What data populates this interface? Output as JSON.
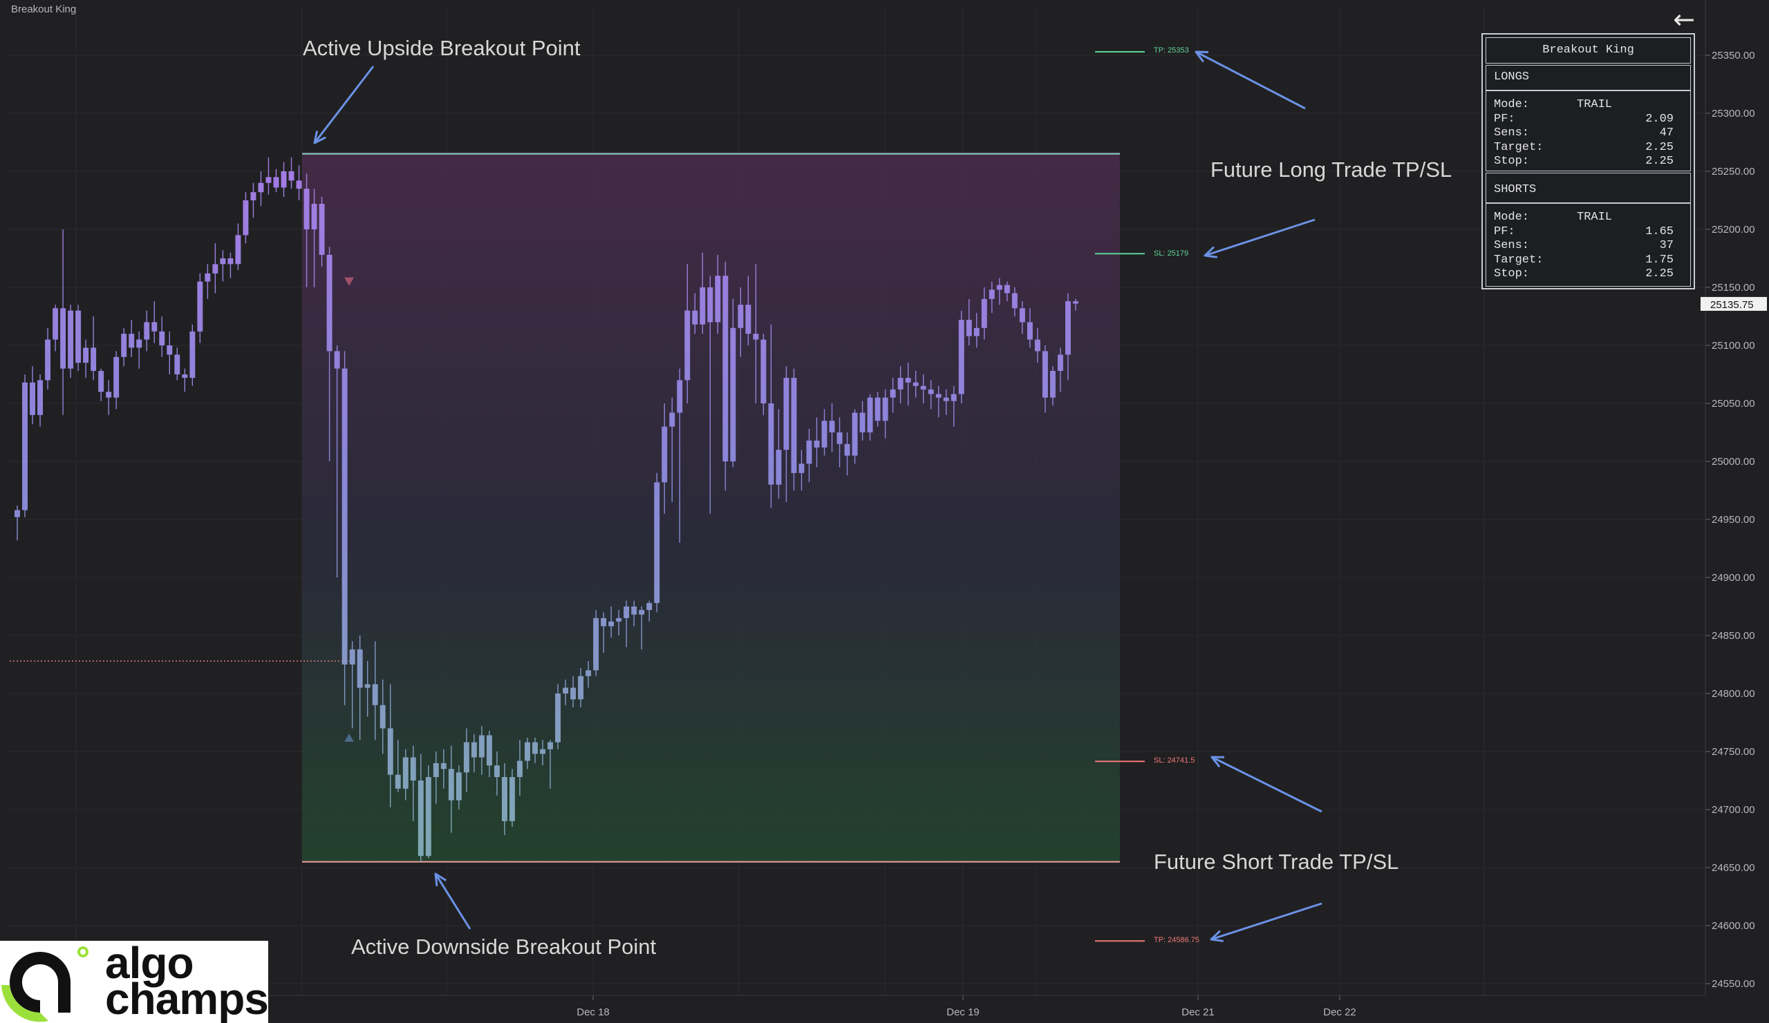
{
  "app": {
    "title": "Breakout King"
  },
  "annotations": {
    "upside": "Active Upside Breakout Point",
    "downside": "Active Downside Breakout Point",
    "long_tpsl": "Future Long Trade TP/SL",
    "short_tpsl": "Future Short Trade TP/SL"
  },
  "levels": {
    "long_tp": "TP: 25353",
    "long_sl": "SL: 25179",
    "short_sl": "SL: 24741.5",
    "short_tp": "TP: 24586.75"
  },
  "panel": {
    "title": "Breakout King",
    "longs": {
      "header": "LONGS",
      "rows": [
        {
          "k": "Mode:",
          "v": "TRAIL"
        },
        {
          "k": "PF:",
          "v": "2.09"
        },
        {
          "k": "Sens:",
          "v": "47"
        },
        {
          "k": "Target:",
          "v": "2.25"
        },
        {
          "k": "Stop:",
          "v": "2.25"
        }
      ]
    },
    "shorts": {
      "header": "SHORTS",
      "rows": [
        {
          "k": "Mode:",
          "v": "TRAIL"
        },
        {
          "k": "PF:",
          "v": "1.65"
        },
        {
          "k": "Sens:",
          "v": "37"
        },
        {
          "k": "Target:",
          "v": "1.75"
        },
        {
          "k": "Stop:",
          "v": "2.25"
        }
      ]
    }
  },
  "logo": {
    "line1": "algo",
    "line2": "champs"
  },
  "icons": {
    "back": "arrow-left-icon",
    "logo": "algochamps-logo-icon"
  },
  "colors": {
    "background": "#202022",
    "grid": "#2b2b2e",
    "candle_top": "#a27ae0",
    "candle_bottom": "#7fa6b6",
    "upper_line": "#7fd6b4",
    "lower_line": "#f0a0a0",
    "long_level": "#5fd49a",
    "short_level": "#f07878",
    "annotation_arrow": "#6b92e6",
    "price_label_bg": "#f0f0f0"
  },
  "chart_data": {
    "type": "candlestick",
    "title": "Breakout King",
    "y_ticks": [
      "25350.00",
      "25300.00",
      "25250.00",
      "25200.00",
      "25150.00",
      "25100.00",
      "25050.00",
      "25000.00",
      "24950.00",
      "24900.00",
      "24850.00",
      "24800.00",
      "24750.00",
      "24700.00",
      "24650.00",
      "24600.00",
      "24550.00"
    ],
    "y_range": [
      24540,
      25385
    ],
    "x_ticks": [
      "Dec 18",
      "Dec 19",
      "Dec 21",
      "Dec 22"
    ],
    "last_price": "25135.75",
    "breakout_upper": 25265,
    "breakout_lower": 24655,
    "prior_level": 24828,
    "long_tp": 25353,
    "long_sl": 25179,
    "short_sl": 24741.5,
    "short_tp": 24586.75,
    "signals": [
      {
        "type": "sell",
        "price": 25155
      },
      {
        "type": "buy",
        "price": 24762
      }
    ],
    "candles": [
      [
        24958,
        24962,
        24932,
        24952
      ],
      [
        24958,
        25075,
        24952,
        25068
      ],
      [
        25068,
        25082,
        25032,
        25040
      ],
      [
        25040,
        25075,
        25030,
        25070
      ],
      [
        25070,
        25115,
        25062,
        25105
      ],
      [
        25105,
        25135,
        25095,
        25132
      ],
      [
        25132,
        25200,
        25040,
        25080
      ],
      [
        25080,
        25135,
        25072,
        25130
      ],
      [
        25130,
        25135,
        25078,
        25085
      ],
      [
        25085,
        25105,
        25072,
        25098
      ],
      [
        25098,
        25125,
        25070,
        25078
      ],
      [
        25078,
        25080,
        25052,
        25060
      ],
      [
        25060,
        25070,
        25040,
        25055
      ],
      [
        25055,
        25095,
        25045,
        25090
      ],
      [
        25090,
        25115,
        25082,
        25110
      ],
      [
        25110,
        25122,
        25090,
        25098
      ],
      [
        25098,
        25112,
        25080,
        25105
      ],
      [
        25105,
        25130,
        25095,
        25120
      ],
      [
        25120,
        25138,
        25102,
        25112
      ],
      [
        25112,
        25125,
        25090,
        25100
      ],
      [
        25100,
        25112,
        25075,
        25092
      ],
      [
        25092,
        25098,
        25070,
        25075
      ],
      [
        25075,
        25080,
        25060,
        25072
      ],
      [
        25072,
        25118,
        25065,
        25112
      ],
      [
        25112,
        25162,
        25102,
        25155
      ],
      [
        25155,
        25170,
        25140,
        25162
      ],
      [
        25162,
        25188,
        25145,
        25170
      ],
      [
        25170,
        25182,
        25155,
        25175
      ],
      [
        25175,
        25180,
        25158,
        25170
      ],
      [
        25170,
        25205,
        25165,
        25195
      ],
      [
        25195,
        25232,
        25188,
        25225
      ],
      [
        25225,
        25240,
        25210,
        25232
      ],
      [
        25232,
        25250,
        25220,
        25240
      ],
      [
        25240,
        25262,
        25230,
        25245
      ],
      [
        25245,
        25252,
        25232,
        25236
      ],
      [
        25236,
        25258,
        25228,
        25250
      ],
      [
        25250,
        25262,
        25235,
        25242
      ],
      [
        25242,
        25255,
        25225,
        25235
      ],
      [
        25235,
        25248,
        25150,
        25200
      ],
      [
        25200,
        25235,
        25150,
        25222
      ],
      [
        25222,
        25228,
        25168,
        25178
      ],
      [
        25178,
        25185,
        25000,
        25095
      ],
      [
        25095,
        25100,
        24900,
        25080
      ],
      [
        25080,
        25095,
        24790,
        24825
      ],
      [
        24825,
        24845,
        24770,
        24838
      ],
      [
        24838,
        24850,
        24760,
        24805
      ],
      [
        24805,
        24828,
        24780,
        24808
      ],
      [
        24808,
        24845,
        24760,
        24790
      ],
      [
        24790,
        24812,
        24748,
        24770
      ],
      [
        24770,
        24808,
        24702,
        24730
      ],
      [
        24730,
        24760,
        24715,
        24718
      ],
      [
        24718,
        24752,
        24708,
        24745
      ],
      [
        24745,
        24755,
        24690,
        24725
      ],
      [
        24725,
        24748,
        24655,
        24660
      ],
      [
        24660,
        24738,
        24658,
        24728
      ],
      [
        24728,
        24750,
        24705,
        24740
      ],
      [
        24740,
        24752,
        24718,
        24735
      ],
      [
        24735,
        24755,
        24680,
        24708
      ],
      [
        24708,
        24738,
        24700,
        24732
      ],
      [
        24732,
        24770,
        24715,
        24758
      ],
      [
        24758,
        24765,
        24732,
        24745
      ],
      [
        24745,
        24772,
        24730,
        24764
      ],
      [
        24764,
        24768,
        24728,
        24738
      ],
      [
        24738,
        24750,
        24712,
        24728
      ],
      [
        24728,
        24740,
        24678,
        24690
      ],
      [
        24690,
        24735,
        24685,
        24728
      ],
      [
        24728,
        24760,
        24712,
        24742
      ],
      [
        24742,
        24762,
        24735,
        24758
      ],
      [
        24758,
        24762,
        24740,
        24748
      ],
      [
        24748,
        24760,
        24738,
        24752
      ],
      [
        24752,
        24760,
        24718,
        24758
      ],
      [
        24758,
        24808,
        24752,
        24800
      ],
      [
        24800,
        24812,
        24790,
        24805
      ],
      [
        24805,
        24815,
        24788,
        24795
      ],
      [
        24795,
        24822,
        24788,
        24815
      ],
      [
        24815,
        24828,
        24805,
        24820
      ],
      [
        24820,
        24872,
        24815,
        24865
      ],
      [
        24865,
        24870,
        24835,
        24858
      ],
      [
        24858,
        24875,
        24848,
        24862
      ],
      [
        24862,
        24872,
        24850,
        24865
      ],
      [
        24865,
        24880,
        24840,
        24875
      ],
      [
        24875,
        24880,
        24858,
        24868
      ],
      [
        24868,
        24875,
        24838,
        24872
      ],
      [
        24872,
        24880,
        24862,
        24878
      ],
      [
        24878,
        24990,
        24870,
        24982
      ],
      [
        24982,
        25050,
        24955,
        25030
      ],
      [
        25030,
        25055,
        24965,
        25042
      ],
      [
        25042,
        25080,
        24930,
        25070
      ],
      [
        25070,
        25170,
        25050,
        25130
      ],
      [
        25130,
        25145,
        25110,
        25118
      ],
      [
        25118,
        25180,
        25110,
        25150
      ],
      [
        25150,
        25160,
        24955,
        25120
      ],
      [
        25120,
        25178,
        25110,
        25160
      ],
      [
        25160,
        25172,
        24975,
        25000
      ],
      [
        25000,
        25140,
        24995,
        25115
      ],
      [
        25115,
        25150,
        25090,
        25135
      ],
      [
        25135,
        25160,
        25100,
        25110
      ],
      [
        25110,
        25170,
        25050,
        25105
      ],
      [
        25105,
        25110,
        25040,
        25050
      ],
      [
        25050,
        25118,
        24960,
        24980
      ],
      [
        24980,
        25045,
        24968,
        25010
      ],
      [
        25010,
        25082,
        24965,
        25072
      ],
      [
        25072,
        25080,
        24975,
        24990
      ],
      [
        24990,
        25010,
        24975,
        24998
      ],
      [
        24998,
        25028,
        24982,
        25018
      ],
      [
        25018,
        25038,
        24995,
        25012
      ],
      [
        25012,
        25045,
        25005,
        25035
      ],
      [
        25035,
        25050,
        25008,
        25025
      ],
      [
        25025,
        25038,
        24995,
        25015
      ],
      [
        25015,
        25025,
        24988,
        25005
      ],
      [
        25005,
        25045,
        24998,
        25042
      ],
      [
        25042,
        25052,
        25018,
        25025
      ],
      [
        25025,
        25058,
        25018,
        25055
      ],
      [
        25055,
        25060,
        25030,
        25035
      ],
      [
        25035,
        25062,
        25020,
        25055
      ],
      [
        25055,
        25072,
        25042,
        25062
      ],
      [
        25062,
        25082,
        25050,
        25072
      ],
      [
        25072,
        25085,
        25048,
        25068
      ],
      [
        25068,
        25078,
        25055,
        25065
      ],
      [
        25065,
        25075,
        25050,
        25062
      ],
      [
        25062,
        25070,
        25045,
        25058
      ],
      [
        25058,
        25065,
        25038,
        25055
      ],
      [
        25055,
        25062,
        25040,
        25052
      ],
      [
        25052,
        25065,
        25030,
        25058
      ],
      [
        25058,
        25130,
        25050,
        25122
      ],
      [
        25122,
        25140,
        25100,
        25108
      ],
      [
        25108,
        25128,
        25098,
        25115
      ],
      [
        25115,
        25150,
        25105,
        25140
      ],
      [
        25140,
        25155,
        25128,
        25148
      ],
      [
        25148,
        25158,
        25135,
        25152
      ],
      [
        25152,
        25155,
        25138,
        25145
      ],
      [
        25145,
        25150,
        25125,
        25132
      ],
      [
        25132,
        25138,
        25110,
        25120
      ],
      [
        25120,
        25132,
        25098,
        25105
      ],
      [
        25105,
        25115,
        25085,
        25095
      ],
      [
        25095,
        25100,
        25042,
        25055
      ],
      [
        25055,
        25082,
        25048,
        25078
      ],
      [
        25078,
        25098,
        25060,
        25092
      ],
      [
        25092,
        25145,
        25070,
        25138
      ],
      [
        25138,
        25140,
        25130,
        25136
      ]
    ]
  }
}
